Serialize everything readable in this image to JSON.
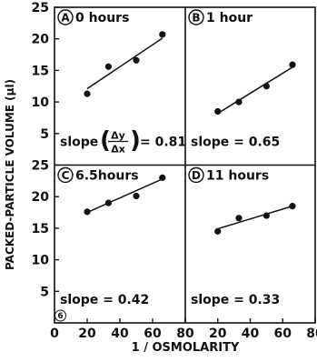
{
  "figure": {
    "ylabel": "PACKED-PARTICLE VOLUME (µl)",
    "xlabel": "1 / OSMOLARITY",
    "y_ticks": [
      "25",
      "20",
      "15",
      "10",
      "5"
    ],
    "x_ticks": [
      "0",
      "20",
      "40",
      "60",
      "80"
    ],
    "x_ticks_right": [
      "20",
      "40",
      "60",
      "80"
    ],
    "corner_mark": "6"
  },
  "chart_data": [
    {
      "type": "scatter",
      "panel": "A",
      "title": "0 hours",
      "x": [
        20,
        33,
        50,
        66
      ],
      "y": [
        11.3,
        15.6,
        16.6,
        20.7
      ],
      "fit": {
        "x": [
          20,
          66
        ],
        "y": [
          12.1,
          20.1
        ]
      },
      "slope_prefix": "slope",
      "slope_eq": "= 0.81",
      "xlim": [
        0,
        80
      ],
      "ylim": [
        0,
        25
      ]
    },
    {
      "type": "scatter",
      "panel": "B",
      "title": "1 hour",
      "x": [
        20,
        33,
        50,
        66
      ],
      "y": [
        8.5,
        10.0,
        12.5,
        15.9
      ],
      "fit": {
        "x": [
          20,
          66
        ],
        "y": [
          8.2,
          15.5
        ]
      },
      "slope_text": "slope = 0.65",
      "xlim": [
        0,
        80
      ],
      "ylim": [
        0,
        25
      ]
    },
    {
      "type": "scatter",
      "panel": "C",
      "title": "6.5hours",
      "x": [
        20,
        33,
        50,
        66
      ],
      "y": [
        17.6,
        19.0,
        20.1,
        23.0
      ],
      "fit": {
        "x": [
          20,
          66
        ],
        "y": [
          17.5,
          22.8
        ]
      },
      "slope_text": "slope = 0.42",
      "xlim": [
        0,
        80
      ],
      "ylim": [
        0,
        25
      ]
    },
    {
      "type": "scatter",
      "panel": "D",
      "title": "11 hours",
      "x": [
        20,
        33,
        50,
        66
      ],
      "y": [
        14.5,
        16.6,
        17.0,
        18.5
      ],
      "fit": {
        "x": [
          20,
          66
        ],
        "y": [
          14.9,
          18.5
        ]
      },
      "slope_text": "slope = 0.33",
      "xlim": [
        0,
        80
      ],
      "ylim": [
        0,
        25
      ]
    }
  ]
}
